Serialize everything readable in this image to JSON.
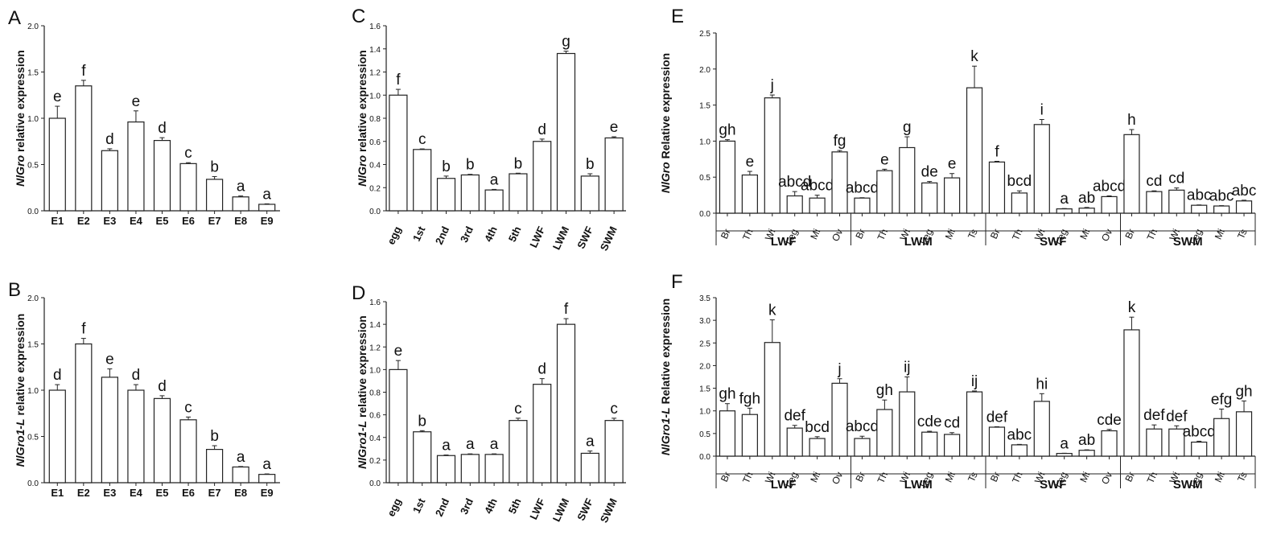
{
  "chart_data": [
    {
      "panel": "A",
      "type": "bar",
      "ylabel_gene": "NlGro",
      "ylabel_rest": " relative expression",
      "ylim": [
        0,
        2.0
      ],
      "yticks": [
        "0.0",
        "0.5",
        "1.0",
        "1.5",
        "2.0"
      ],
      "categories": [
        "E1",
        "E2",
        "E3",
        "E4",
        "E5",
        "E6",
        "E7",
        "E8",
        "E9"
      ],
      "values": [
        1.0,
        1.35,
        0.65,
        0.96,
        0.76,
        0.51,
        0.34,
        0.15,
        0.07
      ],
      "errors": [
        0.13,
        0.06,
        0.02,
        0.12,
        0.03,
        0.01,
        0.03,
        0.01,
        0.005
      ],
      "letters": [
        "e",
        "f",
        "d",
        "e",
        "d",
        "c",
        "b",
        "a",
        "a"
      ]
    },
    {
      "panel": "B",
      "type": "bar",
      "ylabel_gene": "NlGro1-L",
      "ylabel_rest": " relative expression",
      "ylim": [
        0,
        2.0
      ],
      "yticks": [
        "0.0",
        "0.5",
        "1.0",
        "1.5",
        "2.0"
      ],
      "categories": [
        "E1",
        "E2",
        "E3",
        "E4",
        "E5",
        "E6",
        "E7",
        "E8",
        "E9"
      ],
      "values": [
        1.0,
        1.5,
        1.14,
        1.0,
        0.91,
        0.68,
        0.36,
        0.17,
        0.09
      ],
      "errors": [
        0.06,
        0.06,
        0.09,
        0.06,
        0.03,
        0.03,
        0.04,
        0.005,
        0.005
      ],
      "letters": [
        "d",
        "f",
        "e",
        "d",
        "d",
        "c",
        "b",
        "a",
        "a"
      ]
    },
    {
      "panel": "C",
      "type": "bar",
      "ylabel_gene": "NlGro",
      "ylabel_rest": " relative expression",
      "ylim": [
        0,
        1.6
      ],
      "yticks": [
        "0.0",
        "0.2",
        "0.4",
        "0.6",
        "0.8",
        "1.0",
        "1.2",
        "1.4",
        "1.6"
      ],
      "categories": [
        "egg",
        "1st",
        "2nd",
        "3rd",
        "4th",
        "5th",
        "LWF",
        "LWM",
        "SWF",
        "SWM"
      ],
      "values": [
        1.0,
        0.53,
        0.28,
        0.31,
        0.18,
        0.32,
        0.6,
        1.36,
        0.3,
        0.63
      ],
      "errors": [
        0.05,
        0.005,
        0.02,
        0.005,
        0.005,
        0.005,
        0.02,
        0.02,
        0.02,
        0.01
      ],
      "letters": [
        "f",
        "c",
        "b",
        "b",
        "a",
        "b",
        "d",
        "g",
        "b",
        "e"
      ]
    },
    {
      "panel": "D",
      "type": "bar",
      "ylabel_gene": "NlGro1-L",
      "ylabel_rest": " relative expression",
      "ylim": [
        0,
        1.6
      ],
      "yticks": [
        "0.0",
        "0.2",
        "0.4",
        "0.6",
        "0.8",
        "1.0",
        "1.2",
        "1.4",
        "1.6"
      ],
      "categories": [
        "egg",
        "1st",
        "2nd",
        "3rd",
        "4th",
        "5th",
        "LWF",
        "LWM",
        "SWF",
        "SWM"
      ],
      "values": [
        1.0,
        0.45,
        0.24,
        0.25,
        0.25,
        0.55,
        0.87,
        1.4,
        0.26,
        0.55
      ],
      "errors": [
        0.08,
        0.01,
        0.005,
        0.005,
        0.005,
        0.02,
        0.05,
        0.05,
        0.02,
        0.02
      ],
      "letters": [
        "e",
        "b",
        "a",
        "a",
        "a",
        "c",
        "d",
        "f",
        "a",
        "c"
      ]
    },
    {
      "panel": "E",
      "type": "bar",
      "ylabel_gene": "NlGro",
      "ylabel_rest": " Relative expression",
      "ylim": [
        0,
        2.5
      ],
      "yticks": [
        "0.0",
        "0.5",
        "1.0",
        "1.5",
        "2.0",
        "2.5"
      ],
      "categories": [
        "Br",
        "Th",
        "Wi",
        "Leg",
        "Mi",
        "Ov",
        "Br",
        "Th",
        "Wi",
        "Leg",
        "Mi",
        "Ts",
        "Br",
        "Th",
        "Wi",
        "Leg",
        "Mi",
        "Ov",
        "Br",
        "Th",
        "Wi",
        "Leg",
        "Mi",
        "Ts"
      ],
      "groups": [
        "LWF",
        "LWM",
        "SWF",
        "SWM"
      ],
      "values": [
        1.0,
        0.53,
        1.6,
        0.24,
        0.21,
        0.85,
        0.21,
        0.59,
        0.91,
        0.42,
        0.49,
        1.74,
        0.71,
        0.28,
        1.23,
        0.06,
        0.07,
        0.23,
        1.09,
        0.3,
        0.32,
        0.11,
        0.1,
        0.17
      ],
      "errors": [
        0.02,
        0.05,
        0.04,
        0.06,
        0.04,
        0.02,
        0.005,
        0.02,
        0.15,
        0.02,
        0.06,
        0.3,
        0.01,
        0.03,
        0.07,
        0.005,
        0.01,
        0.01,
        0.07,
        0.01,
        0.03,
        0.005,
        0.005,
        0.01
      ],
      "letters": [
        "gh",
        "e",
        "j",
        "abcd",
        "abcd",
        "fg",
        "abcd",
        "e",
        "g",
        "de",
        "e",
        "k",
        "f",
        "bcd",
        "i",
        "a",
        "ab",
        "abcd",
        "h",
        "cd",
        "cd",
        "abc",
        "abc",
        "abc"
      ]
    },
    {
      "panel": "F",
      "type": "bar",
      "ylabel_gene": "NlGro1-L",
      "ylabel_rest": " Relative expression",
      "ylim": [
        0,
        3.5
      ],
      "yticks": [
        "0.0",
        "0.5",
        "1.0",
        "1.5",
        "2.0",
        "2.5",
        "3.0",
        "3.5"
      ],
      "categories": [
        "Br",
        "Th",
        "Wi",
        "Leg",
        "Mi",
        "Ov",
        "Br",
        "Th",
        "Wi",
        "Leg",
        "Mi",
        "Ts",
        "Br",
        "Th",
        "Wi",
        "Leg",
        "Mi",
        "Ov",
        "Br",
        "Th",
        "Wi",
        "Leg",
        "Mi",
        "Ts"
      ],
      "groups": [
        "LWF",
        "LWM",
        "SWF",
        "SWM"
      ],
      "values": [
        1.0,
        0.92,
        2.51,
        0.62,
        0.39,
        1.61,
        0.39,
        1.03,
        1.42,
        0.53,
        0.48,
        1.42,
        0.64,
        0.25,
        1.21,
        0.06,
        0.13,
        0.56,
        2.79,
        0.6,
        0.6,
        0.31,
        0.83,
        0.98
      ],
      "errors": [
        0.16,
        0.14,
        0.5,
        0.06,
        0.04,
        0.1,
        0.05,
        0.21,
        0.33,
        0.02,
        0.04,
        0.02,
        0.01,
        0.01,
        0.17,
        0.005,
        0.01,
        0.03,
        0.28,
        0.09,
        0.07,
        0.02,
        0.21,
        0.24
      ],
      "letters": [
        "gh",
        "fgh",
        "k",
        "def",
        "bcd",
        "j",
        "abcd",
        "gh",
        "ij",
        "cde",
        "cd",
        "ij",
        "def",
        "abc",
        "hi",
        "a",
        "ab",
        "cde",
        "k",
        "def",
        "def",
        "abcd",
        "efg",
        "gh"
      ]
    }
  ]
}
